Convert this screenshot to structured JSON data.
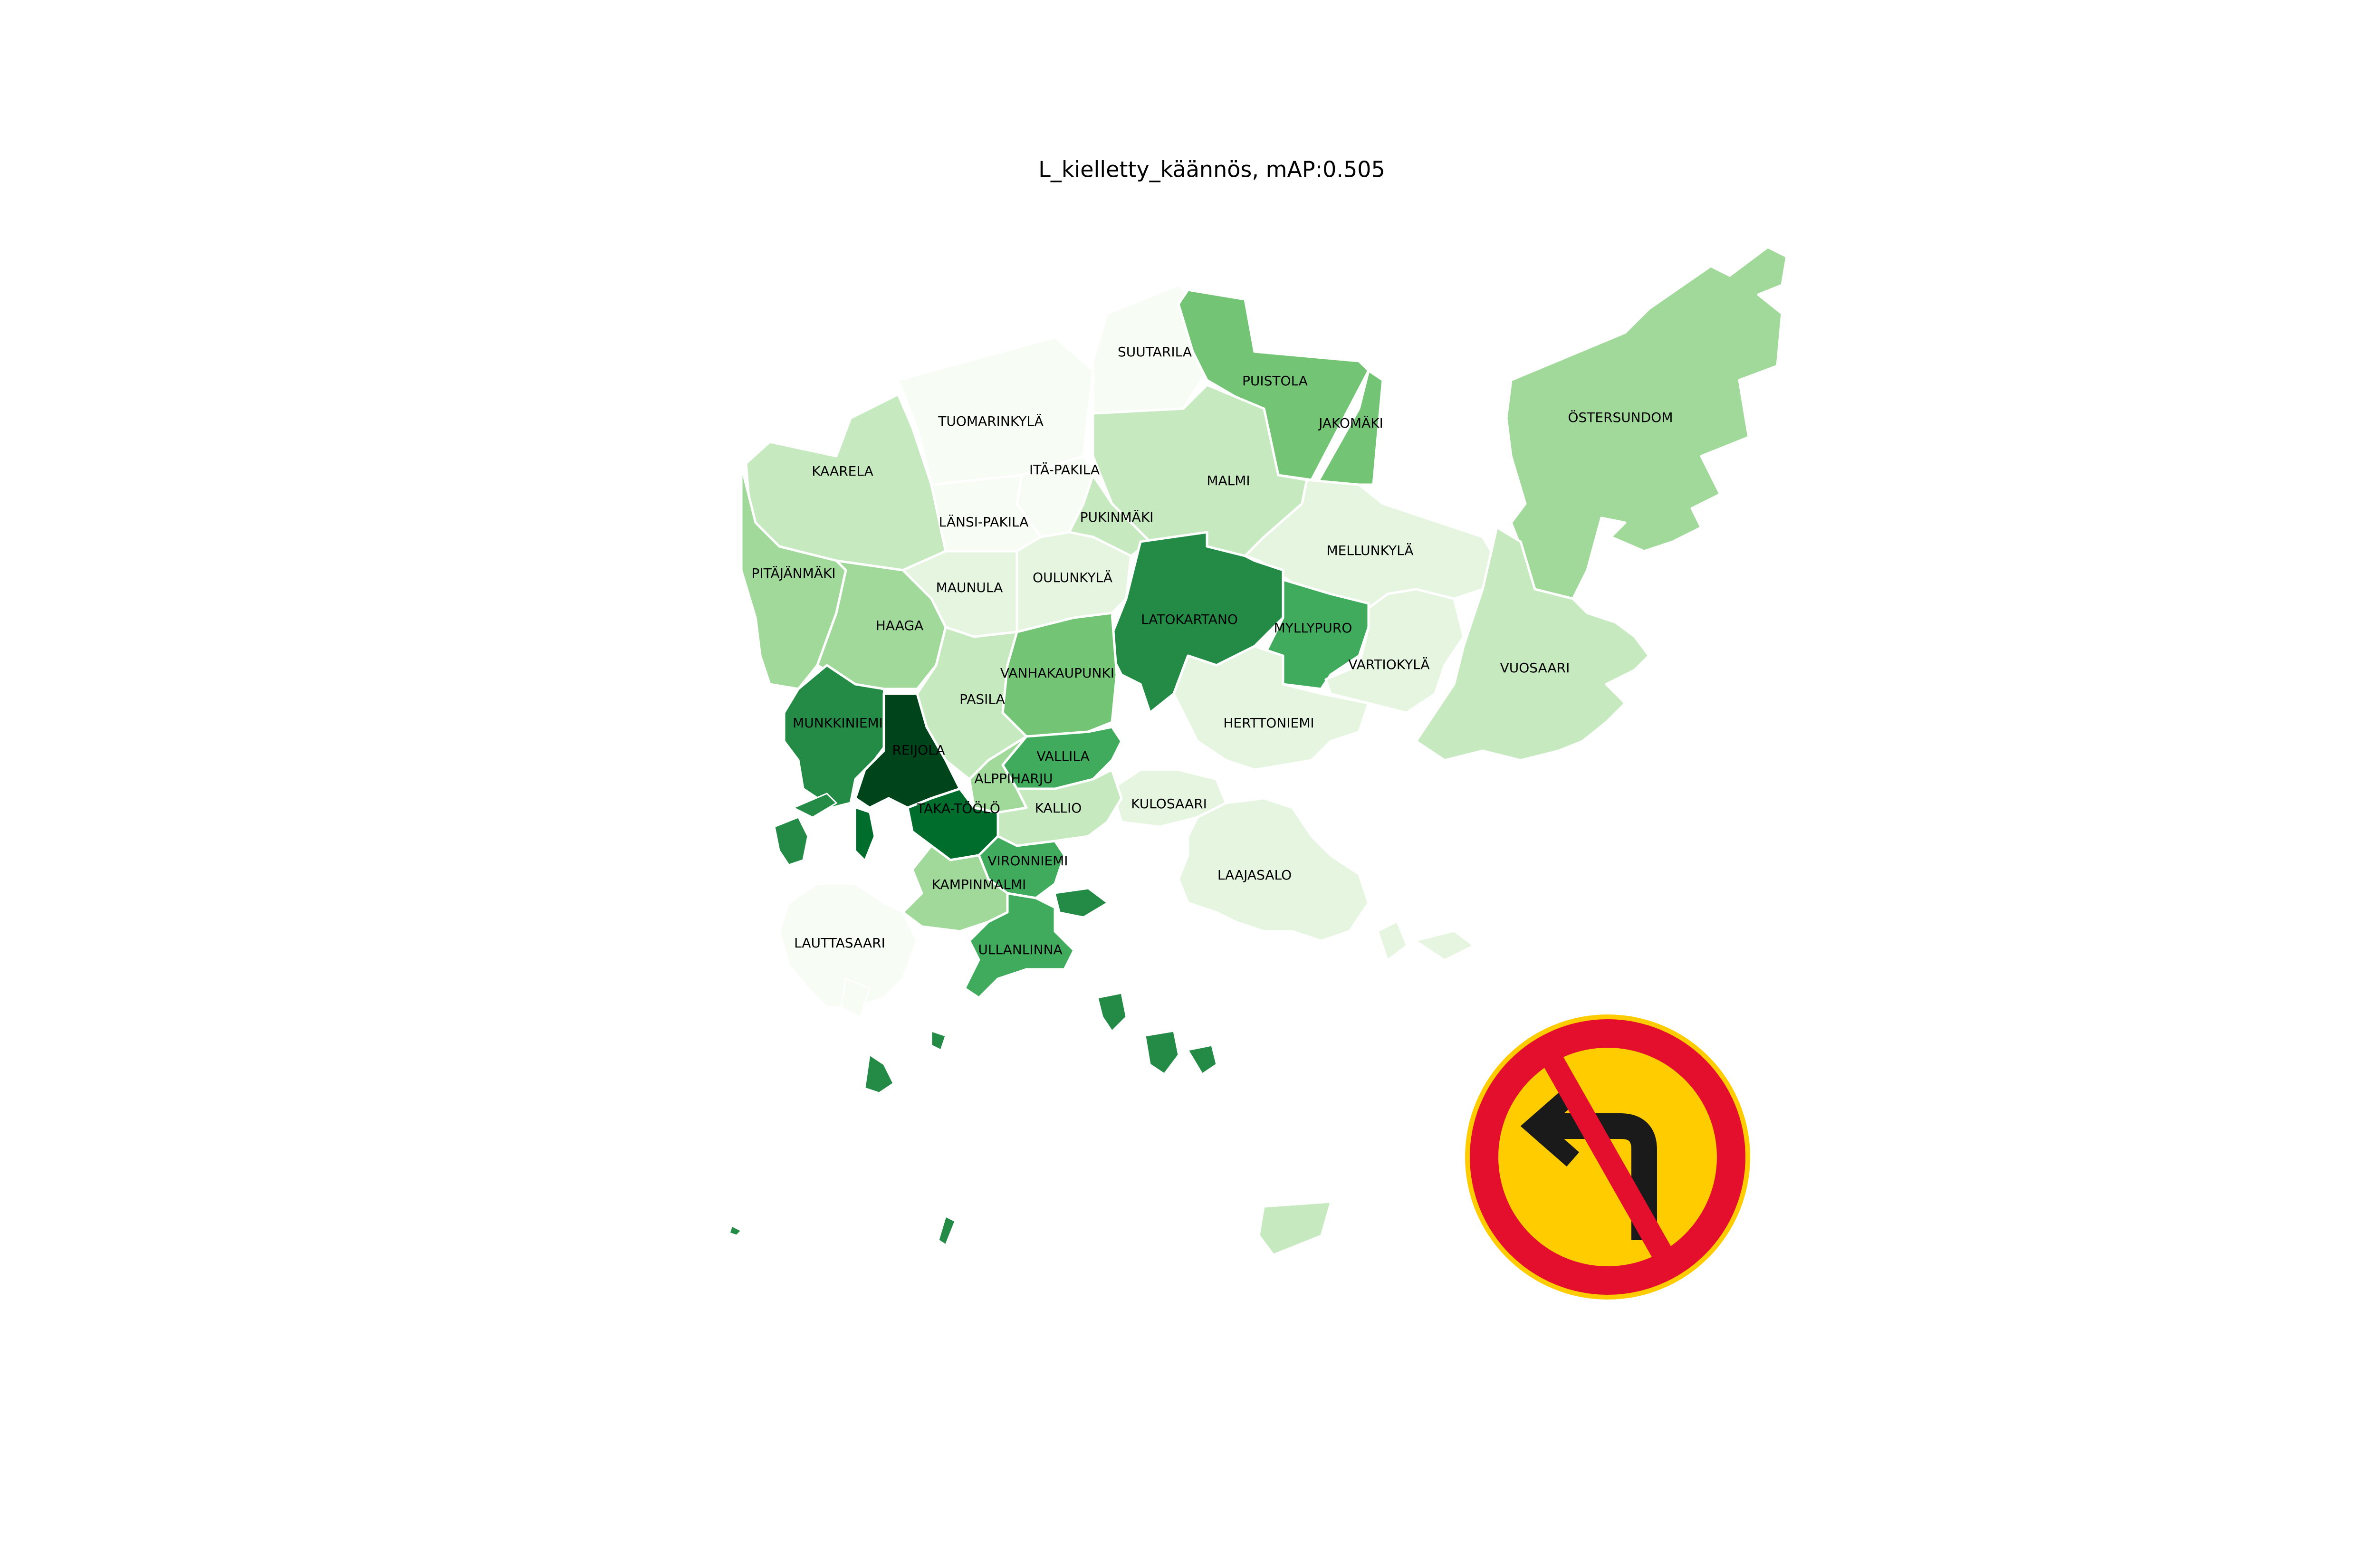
{
  "title": "L_kielletty_käännös, mAP:0.505",
  "colors": {
    "g0": "#f7fcf5",
    "g1": "#e5f5e0",
    "g2": "#c7e9c0",
    "g3": "#a1d99b",
    "g4": "#74c476",
    "g5": "#41ab5d",
    "g6": "#238b45",
    "g7": "#006d2c",
    "g8": "#00441b",
    "sign_red": "#e30f2d",
    "sign_yellow": "#ffcc00",
    "sign_black": "#1a1a1a"
  },
  "districts": [
    {
      "name": "SUUTARILA"
    },
    {
      "name": "PUISTOLA"
    },
    {
      "name": "TUOMARINKYLÄ"
    },
    {
      "name": "JAKOMÄKI"
    },
    {
      "name": "ÖSTERSUNDOM"
    },
    {
      "name": "KAARELA"
    },
    {
      "name": "ITÄ-PAKILA"
    },
    {
      "name": "MALMI"
    },
    {
      "name": "LÄNSI-PAKILA"
    },
    {
      "name": "PUKINMÄKI"
    },
    {
      "name": "MELLUNKYLÄ"
    },
    {
      "name": "PITÄJÄNMÄKI"
    },
    {
      "name": "MAUNULA"
    },
    {
      "name": "OULUNKYLÄ"
    },
    {
      "name": "LATOKARTANO"
    },
    {
      "name": "HAAGA"
    },
    {
      "name": "MYLLYPURO"
    },
    {
      "name": "VARTIOKYLÄ"
    },
    {
      "name": "VUOSAARI"
    },
    {
      "name": "VANHAKAUPUNKI"
    },
    {
      "name": "PASILA"
    },
    {
      "name": "MUNKKINIEMI"
    },
    {
      "name": "HERTTONIEMI"
    },
    {
      "name": "VALLILA"
    },
    {
      "name": "REIJOLA"
    },
    {
      "name": "ALPPIHARJU"
    },
    {
      "name": "KULOSAARI"
    },
    {
      "name": "TAKA-TÖÖLÖ"
    },
    {
      "name": "KALLIO"
    },
    {
      "name": "VIRONNIEMI"
    },
    {
      "name": "LAAJASALO"
    },
    {
      "name": "KAMPINMALMI"
    },
    {
      "name": "LAUTTASAARI"
    },
    {
      "name": "ULLANLINNA"
    }
  ],
  "sign": {
    "icon": "no-left-turn-sign-icon"
  }
}
